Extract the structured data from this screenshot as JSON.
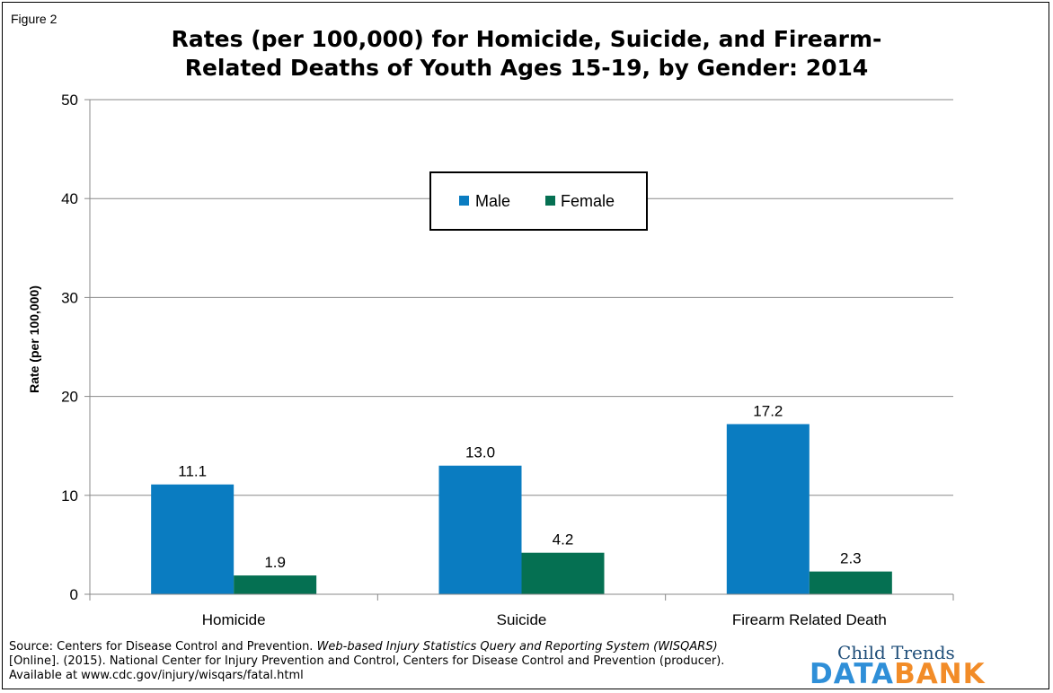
{
  "figure_label": "Figure 2",
  "title_line1": "Rates (per 100,000) for Homicide, Suicide, and Firearm-",
  "title_line2": "Related Deaths of Youth Ages 15-19, by Gender: 2014",
  "colors": {
    "male": "#0a7cc1",
    "female": "#057052",
    "grid": "#888888"
  },
  "chart_data": {
    "type": "bar",
    "categories": [
      "Homicide",
      "Suicide",
      "Firearm Related Death"
    ],
    "series": [
      {
        "name": "Male",
        "values": [
          11.1,
          13.0,
          17.2
        ],
        "labels": [
          "11.1",
          "13.0",
          "17.2"
        ]
      },
      {
        "name": "Female",
        "values": [
          1.9,
          4.2,
          2.3
        ],
        "labels": [
          "1.9",
          "4.2",
          "2.3"
        ]
      }
    ],
    "ylabel": "Rate (per 100,000)",
    "xlabel": "",
    "ylim": [
      0,
      50
    ],
    "yticks": [
      0,
      10,
      20,
      30,
      40,
      50
    ],
    "grid": true,
    "legend_position": "upper-center"
  },
  "source": {
    "prefix": "Source:  Centers for Disease Control and Prevention. ",
    "italic": "Web-based Injury Statistics Query and Reporting System (WISQARS)",
    "suffix": " [Online]. (2015). National Center for Injury Prevention and Control, Centers for Disease Control and Prevention (producer).  Available at www.cdc.gov/injury/wisqars/fatal.html"
  },
  "logo": {
    "line1": "Child Trends",
    "data_word": "DATA",
    "bank_word": "BANK"
  }
}
